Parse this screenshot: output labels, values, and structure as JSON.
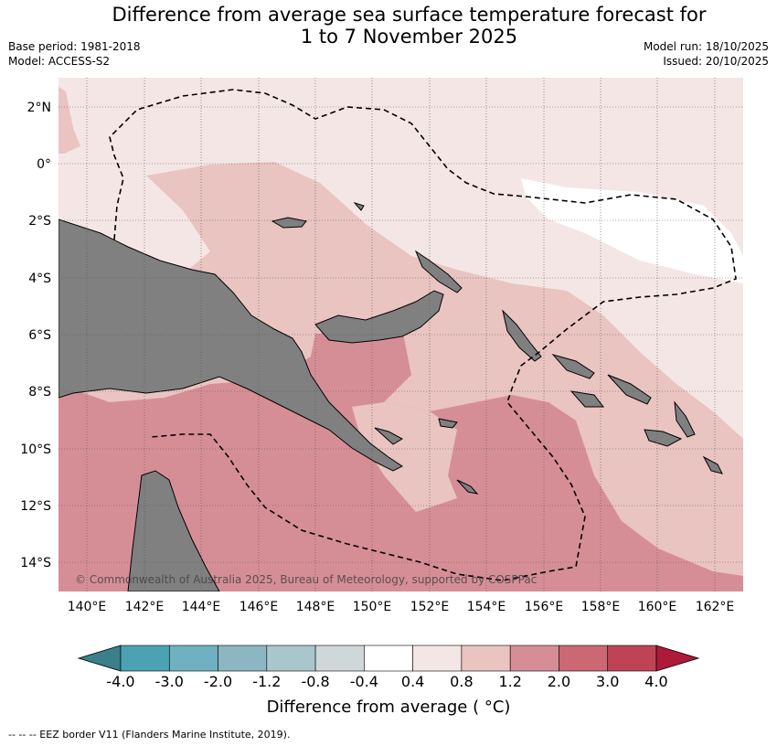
{
  "title_line1": "Difference from average sea surface temperature forecast for",
  "title_line2": "1 to 7 November 2025",
  "base_period": "Base period: 1981-2018",
  "model": "Model: ACCESS-S2",
  "model_run": "Model run: 18/10/2025",
  "issued": "Issued: 20/10/2025",
  "copyright": "© Commonwealth of Australia 2025, Bureau of Meteorology, supported by COSPPac",
  "lat_labels": [
    "2°N",
    "0°",
    "2°S",
    "4°S",
    "6°S",
    "8°S",
    "10°S",
    "12°S",
    "14°S"
  ],
  "lon_labels": [
    "140°E",
    "142°E",
    "144°E",
    "146°E",
    "148°E",
    "150°E",
    "152°E",
    "154°E",
    "156°E",
    "158°E",
    "160°E",
    "162°E"
  ],
  "colorbar": {
    "labels": [
      "-4.0",
      "-3.0",
      "-2.0",
      "-1.2",
      "-0.8",
      "-0.4",
      "0.4",
      "0.8",
      "1.2",
      "2.0",
      "3.0",
      "4.0"
    ],
    "colors": [
      "#3b7f8a",
      "#4aa2b2",
      "#6fb1c1",
      "#8cb6c2",
      "#a9c6cc",
      "#d0d7d9",
      "#ffffff",
      "#f4e6e4",
      "#e9c4c1",
      "#d68e96",
      "#cb6873",
      "#be4455",
      "#ae1a3a"
    ],
    "title": "Difference from average ( °C)"
  },
  "footer": "--  --  -- EEZ border V11 (Flanders Marine Institute, 2019)."
}
